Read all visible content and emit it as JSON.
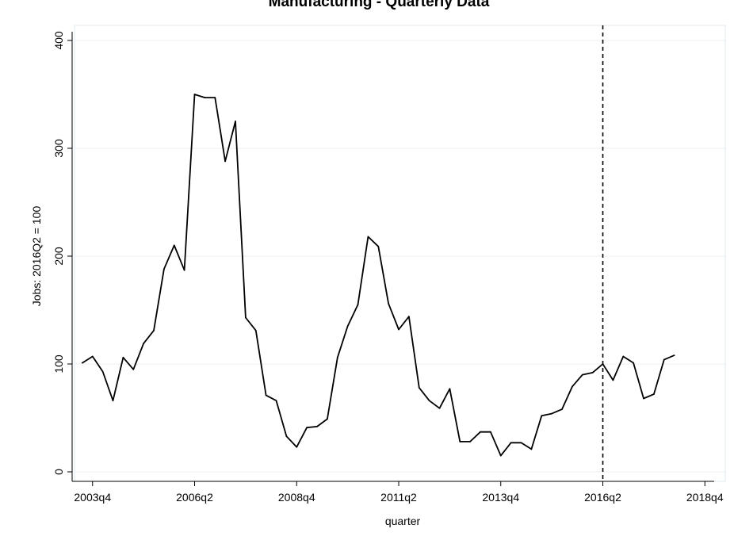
{
  "chart_data": {
    "type": "line",
    "title": "Manufacturing - Quarterly Data",
    "xlabel": "quarter",
    "ylabel": "Jobs: 2016Q2 = 100",
    "ylim": [
      0,
      400
    ],
    "yticks": [
      "0",
      "100",
      "200",
      "300",
      "400"
    ],
    "xticks": [
      "2003q4",
      "2006q2",
      "2008q4",
      "2011q2",
      "2013q4",
      "2016q2",
      "2018q4"
    ],
    "grid": true,
    "reference_line": {
      "x": "2016q2",
      "style": "dashed"
    },
    "series": [
      {
        "x": [
          "2003q3",
          "2003q4",
          "2004q1",
          "2004q2",
          "2004q3",
          "2004q4",
          "2005q1",
          "2005q2",
          "2005q3",
          "2005q4",
          "2006q1",
          "2006q2",
          "2006q3",
          "2006q4",
          "2007q1",
          "2007q2",
          "2007q3",
          "2007q4",
          "2008q1",
          "2008q2",
          "2008q3",
          "2008q4",
          "2009q1",
          "2009q2",
          "2009q3",
          "2009q4",
          "2010q1",
          "2010q2",
          "2010q3",
          "2010q4",
          "2011q1",
          "2011q2",
          "2011q3",
          "2011q4",
          "2012q1",
          "2012q2",
          "2012q3",
          "2012q4",
          "2013q1",
          "2013q2",
          "2013q3",
          "2013q4",
          "2014q1",
          "2014q2",
          "2014q3",
          "2014q4",
          "2015q1",
          "2015q2",
          "2015q3",
          "2015q4",
          "2016q1",
          "2016q2",
          "2016q3",
          "2016q4",
          "2017q1",
          "2017q2",
          "2017q3",
          "2017q4",
          "2018q1"
        ],
        "values": [
          101,
          107,
          93,
          66,
          106,
          95,
          119,
          131,
          188,
          210,
          187,
          350,
          347,
          347,
          288,
          325,
          143,
          131,
          71,
          66,
          33,
          23,
          41,
          42,
          49,
          106,
          135,
          155,
          218,
          209,
          156,
          132,
          144,
          78,
          66,
          59,
          77,
          28,
          28,
          37,
          37,
          15,
          27,
          27,
          21,
          52,
          54,
          58,
          79,
          90,
          92,
          100,
          85,
          107,
          101,
          68,
          72,
          104,
          108
        ],
        "color": "#000000"
      }
    ]
  }
}
